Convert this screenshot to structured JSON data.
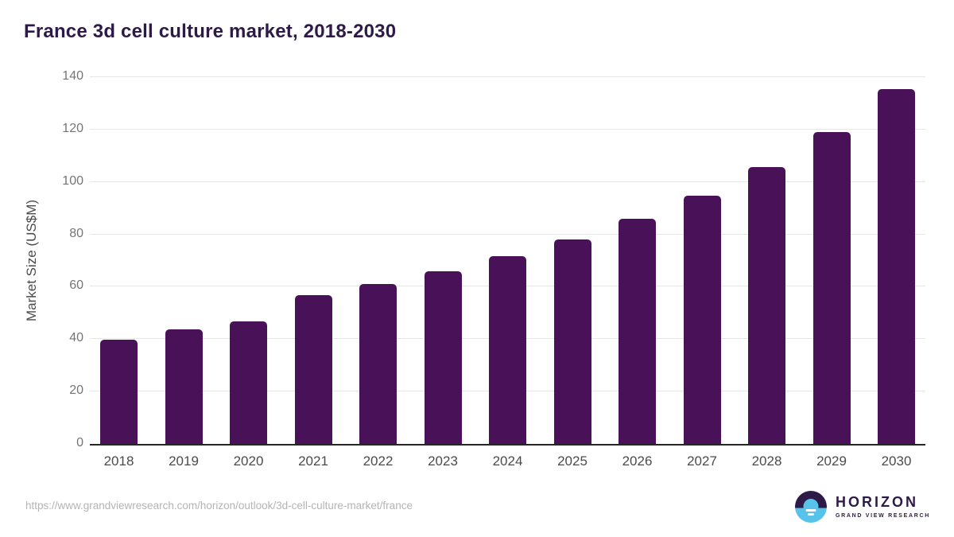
{
  "header": {
    "title": "France 3d cell culture market, 2018-2030"
  },
  "chart_data": {
    "type": "bar",
    "title": "France 3d cell culture market, 2018-2030",
    "categories": [
      "2018",
      "2019",
      "2020",
      "2021",
      "2022",
      "2023",
      "2024",
      "2025",
      "2026",
      "2027",
      "2028",
      "2029",
      "2030"
    ],
    "values": [
      39.7,
      43.6,
      46.9,
      56.9,
      61.0,
      66.0,
      71.6,
      78.0,
      85.8,
      94.9,
      105.8,
      119.2,
      135.5
    ],
    "xlabel": "",
    "ylabel": "Market Size (US$M)",
    "ylim": [
      0,
      140
    ],
    "yticks": [
      0,
      20,
      40,
      60,
      80,
      100,
      120,
      140
    ],
    "grid": "horizontal",
    "legend": "none",
    "bar_color": "#491158"
  },
  "colors": {
    "bar": "#491158",
    "title_text": "#2e1a47",
    "axis_line": "#262626",
    "gridline": "#e7e7e7",
    "tick_text": "#757575",
    "x_tick_text": "#4b4b4b",
    "url_text": "#b4b4b4",
    "logo_purple": "#2e1a47",
    "logo_blue": "#58c3ea"
  },
  "footer": {
    "source_url": "https://www.grandviewresearch.com/horizon/outlook/3d-cell-culture-market/france",
    "logo": {
      "name": "HORIZON",
      "subtitle": "GRAND VIEW RESEARCH",
      "icon": "sunrise-circle-icon"
    }
  }
}
